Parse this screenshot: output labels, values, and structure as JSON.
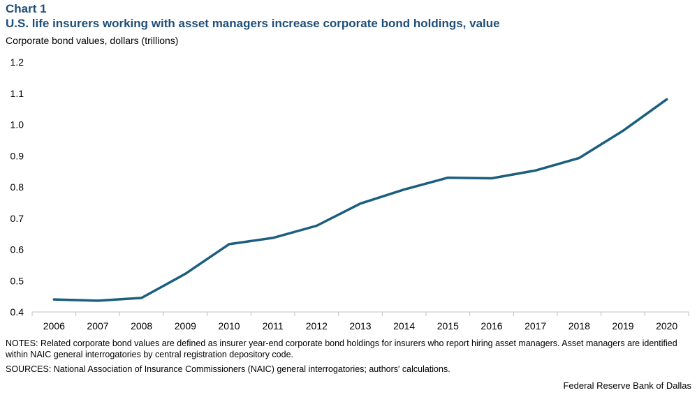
{
  "header": {
    "chart_label": "Chart 1",
    "title": "U.S. life insurers working with asset managers increase corporate bond holdings, value",
    "subtitle": "Corporate bond values, dollars (trillions)"
  },
  "footer": {
    "notes": "NOTES: Related corporate bond values are defined as insurer year-end corporate bond holdings for insurers who report hiring asset managers. Asset managers are identified within NAIC general interrogatories by central registration depository code.",
    "sources": "SOURCES: National Association of Insurance Commissioners (NAIC) general interrogatories; authors' calculations.",
    "credit": "Federal Reserve Bank of Dallas"
  },
  "colors": {
    "line": "#1b5e7e",
    "title": "#1f4e79",
    "axis": "#bfbfbf"
  },
  "chart_data": {
    "type": "line",
    "categories": [
      "2006",
      "2007",
      "2008",
      "2009",
      "2010",
      "2011",
      "2012",
      "2013",
      "2014",
      "2015",
      "2016",
      "2017",
      "2018",
      "2019",
      "2020"
    ],
    "series": [
      {
        "values": [
          0.44,
          0.436,
          0.445,
          0.522,
          0.617,
          0.637,
          0.676,
          0.747,
          0.792,
          0.83,
          0.828,
          0.853,
          0.893,
          0.98,
          1.081
        ]
      }
    ],
    "ylim": [
      0.4,
      1.2
    ],
    "yticks": [
      "0.4",
      "0.5",
      "0.6",
      "0.7",
      "0.8",
      "0.9",
      "1.0",
      "1.1",
      "1.2"
    ],
    "grid": false,
    "xlabel": "",
    "ylabel": ""
  }
}
